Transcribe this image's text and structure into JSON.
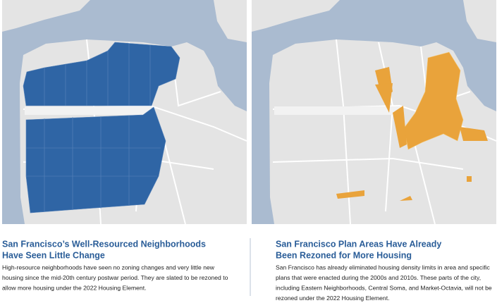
{
  "panels": [
    {
      "title": [
        "San Francisco’s Well-Resourced Neighborhoods",
        "Have Seen Little Change"
      ],
      "body": [
        "High-resource neighborhoods have seen no zoning changes and very little new",
        "housing since the mid-20th century postwar period. They are slated to be rezoned to",
        "allow more housing under the 2022 Housing Element."
      ]
    },
    {
      "title": [
        "San Francisco Plan Areas Have Already",
        "Been Rezoned for More Housing"
      ],
      "body": [
        "San Francisco has already eliminated housing density limits in area and specific",
        "plans that were enacted during the 2000s and 2010s. These parts of the city,",
        "including Eastern Neighborhoods, Central Soma, and Market-Octavia, will not be",
        "rezoned under the 2022 Housing Element."
      ]
    }
  ]
}
